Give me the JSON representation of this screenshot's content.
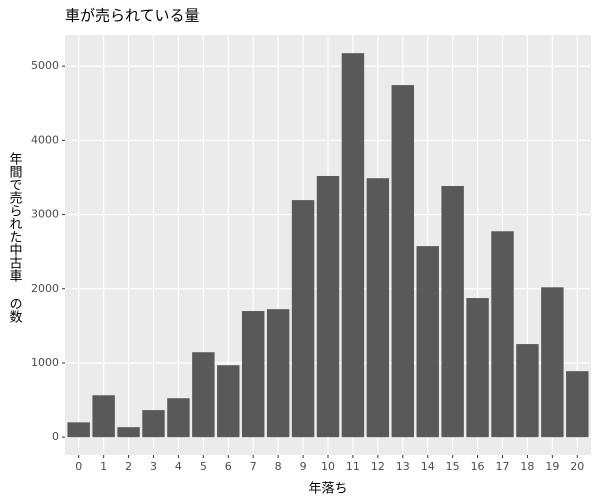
{
  "chart_data": {
    "type": "bar",
    "title": "車が売られている量",
    "x_label": "年落ち",
    "y_label": "年間で売られた中古車 の数",
    "x": [
      0,
      1,
      2,
      3,
      4,
      5,
      6,
      7,
      8,
      9,
      10,
      11,
      12,
      13,
      14,
      15,
      16,
      17,
      18,
      19,
      20
    ],
    "values": [
      200,
      565,
      135,
      365,
      525,
      1145,
      970,
      1700,
      1725,
      3195,
      3520,
      5175,
      3490,
      4745,
      2575,
      3385,
      1875,
      2775,
      1255,
      2020,
      890
    ],
    "color": "#595959",
    "xlim": [
      -0.55,
      20.55
    ],
    "xticks": [
      0,
      1,
      2,
      3,
      4,
      5,
      6,
      7,
      8,
      9,
      10,
      11,
      12,
      13,
      14,
      15,
      16,
      17,
      18,
      19,
      20
    ],
    "ylim": [
      -240,
      5420
    ],
    "yticks": [
      0,
      1000,
      2000,
      3000,
      4000,
      5000
    ],
    "grid": true
  }
}
